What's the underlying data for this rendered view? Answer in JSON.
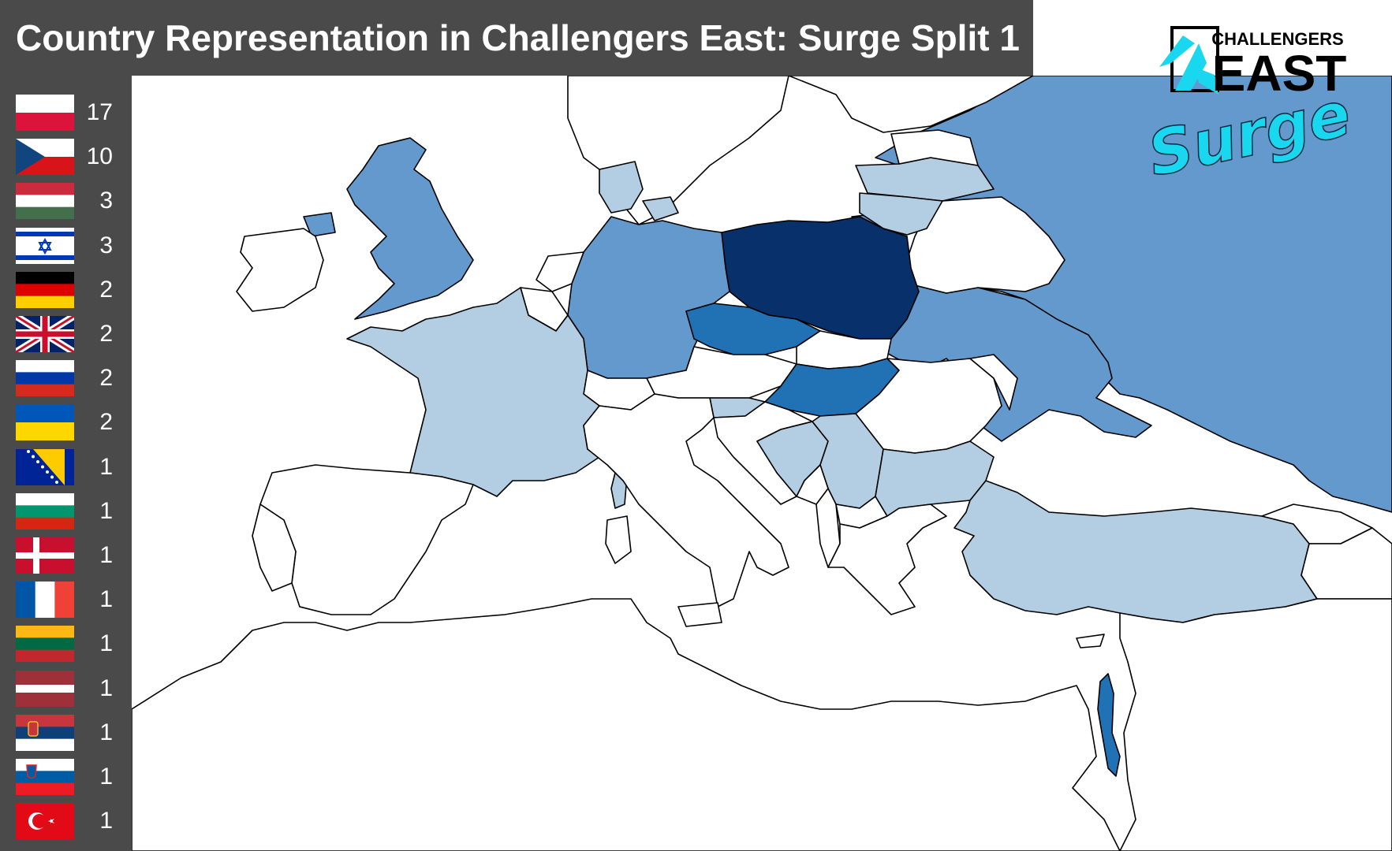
{
  "title": "Country Representation in Challengers East: Surge Split 1",
  "logo": {
    "line1": "CHALLENGERS",
    "line2": "EAST",
    "script": "Surge"
  },
  "colors": {
    "sidebar": "#4a4a4a",
    "tier_17": "#08306b",
    "tier_10": "#2171b5",
    "tier_3": "#2171b5",
    "tier_2": "#6399cc",
    "tier_1": "#b3cde3",
    "tier_0": "#ffffff",
    "logo_cyan": "#1ad7f0"
  },
  "legend": [
    {
      "flag": "poland-flag",
      "count": "17"
    },
    {
      "flag": "czechia-flag",
      "count": "10"
    },
    {
      "flag": "hungary-flag",
      "count": "3"
    },
    {
      "flag": "israel-flag",
      "count": "3"
    },
    {
      "flag": "germany-flag",
      "count": "2"
    },
    {
      "flag": "uk-flag",
      "count": "2"
    },
    {
      "flag": "russia-flag",
      "count": "2"
    },
    {
      "flag": "ukraine-flag",
      "count": "2"
    },
    {
      "flag": "bosnia-flag",
      "count": "1"
    },
    {
      "flag": "bulgaria-flag",
      "count": "1"
    },
    {
      "flag": "denmark-flag",
      "count": "1"
    },
    {
      "flag": "france-flag",
      "count": "1"
    },
    {
      "flag": "lithuania-flag",
      "count": "1"
    },
    {
      "flag": "latvia-flag",
      "count": "1"
    },
    {
      "flag": "serbia-flag",
      "count": "1"
    },
    {
      "flag": "slovenia-flag",
      "count": "1"
    },
    {
      "flag": "turkey-flag",
      "count": "1"
    }
  ]
}
